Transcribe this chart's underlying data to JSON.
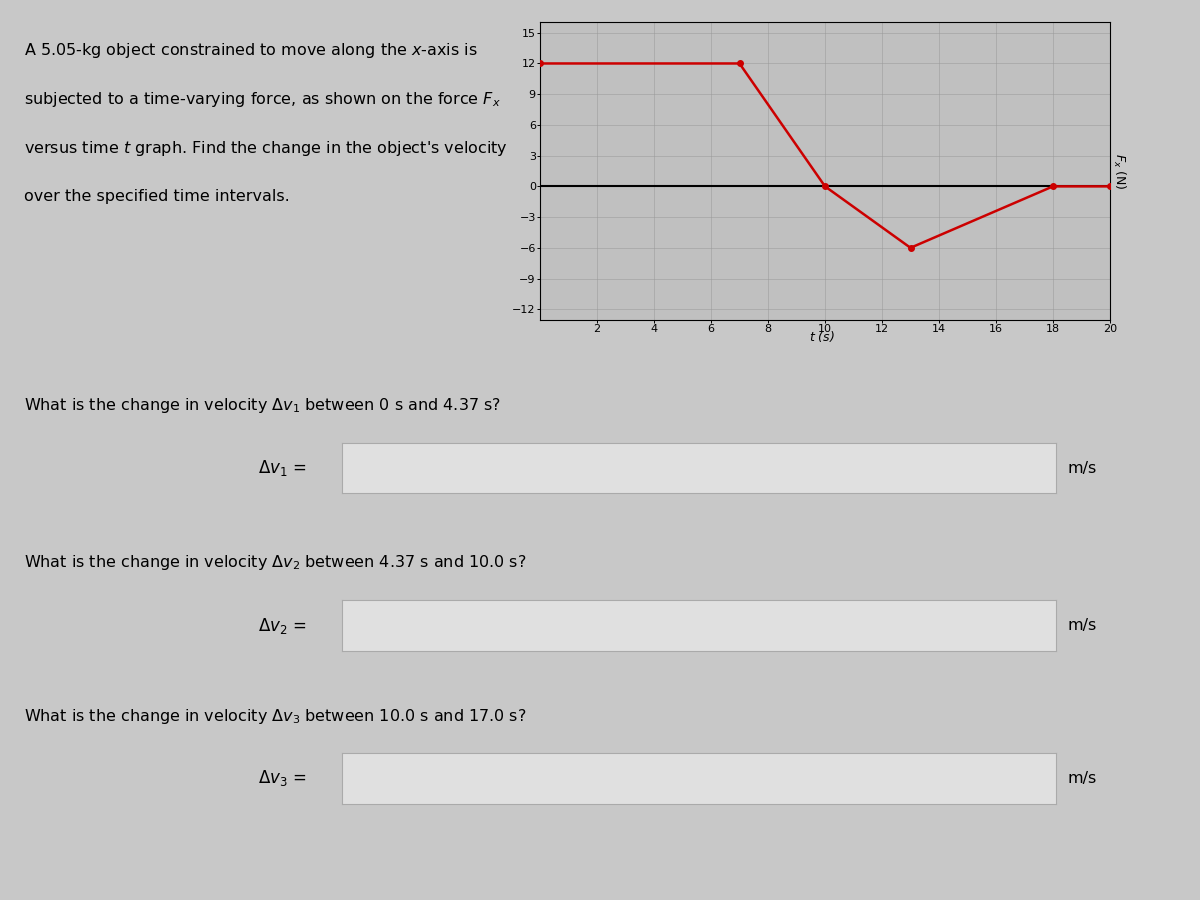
{
  "graph_t": [
    0,
    7,
    10,
    13,
    18,
    20
  ],
  "graph_F": [
    12,
    12,
    0,
    -6,
    0,
    0
  ],
  "line_color": "#cc0000",
  "marker_color": "#cc0000",
  "marker_size": 4,
  "line_width": 1.8,
  "xlim": [
    0,
    20
  ],
  "ylim": [
    -13,
    16
  ],
  "xticks": [
    2,
    4,
    6,
    8,
    10,
    12,
    14,
    16,
    18,
    20
  ],
  "yticks": [
    -12,
    -9,
    -6,
    -3,
    0,
    3,
    6,
    9,
    12,
    15
  ],
  "xlabel": "t (s)",
  "ylabel": "$F_x$ (N)",
  "grid_color": "#999999",
  "grid_alpha": 0.6,
  "bg_color": "#c8c8c8",
  "plot_bg_color": "#c0c0c0",
  "input_box_color": "#e0e0e0",
  "input_box_edgecolor": "#aaaaaa"
}
